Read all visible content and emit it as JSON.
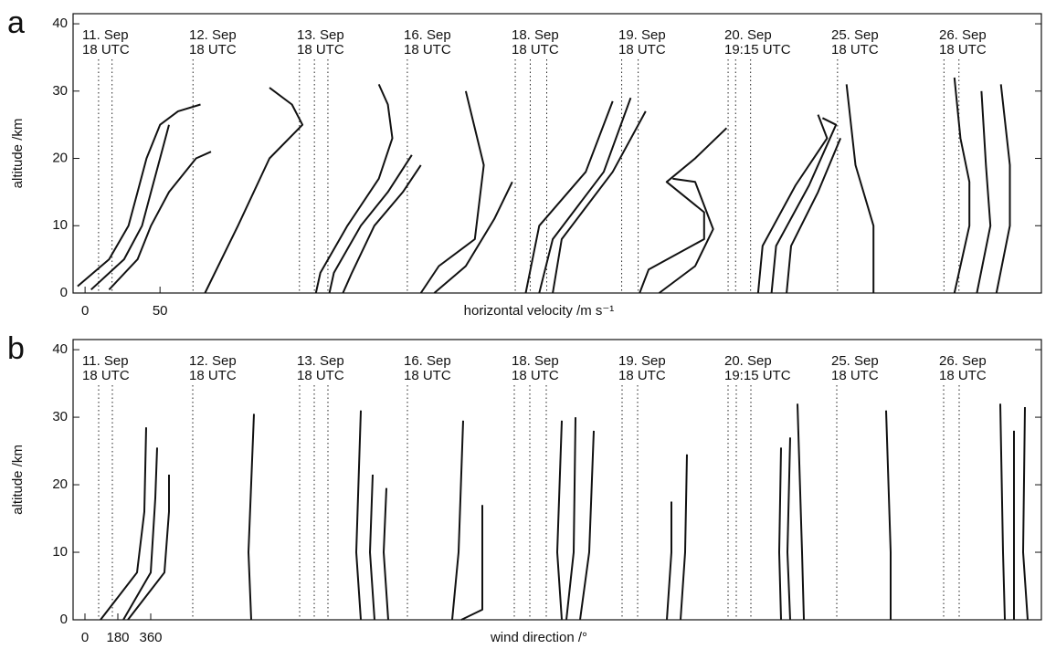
{
  "chart_data": [
    {
      "type": "line",
      "panel_label": "a",
      "ylabel": "altitude /km",
      "xlabel": "horizontal velocity /m s⁻¹",
      "xlim": [
        -8,
        638
      ],
      "ylim": [
        0,
        41.5
      ],
      "xticks": [
        0,
        50
      ],
      "yticks": [
        0,
        10,
        20,
        30,
        40
      ],
      "dates": [
        {
          "day": "11. Sep",
          "time": "18 UTC"
        },
        {
          "day": "12. Sep",
          "time": "18 UTC"
        },
        {
          "day": "13. Sep",
          "time": "18 UTC"
        },
        {
          "day": "16. Sep",
          "time": "18 UTC"
        },
        {
          "day": "18. Sep",
          "time": "18 UTC"
        },
        {
          "day": "19. Sep",
          "time": "18 UTC"
        },
        {
          "day": "20. Sep",
          "time": "19:15 UTC"
        },
        {
          "day": "25. Sep",
          "time": "18 UTC"
        },
        {
          "day": "26. Sep",
          "time": "18 UTC"
        }
      ],
      "reference_lines": [
        9,
        18,
        72,
        143,
        153,
        162,
        215,
        287,
        297,
        308,
        358,
        369,
        429,
        434,
        444,
        502,
        573,
        583
      ],
      "series": [
        {
          "color": "#111111",
          "x": [
            -5,
            16,
            29,
            35,
            41,
            50,
            62,
            77
          ],
          "values": [
            1,
            5,
            10,
            15,
            20,
            25,
            27,
            28
          ]
        },
        {
          "color": "#111111",
          "x": [
            4,
            26,
            38,
            44,
            50,
            56
          ],
          "values": [
            0.5,
            5,
            10,
            15,
            20,
            25
          ]
        },
        {
          "color": "#111111",
          "x": [
            16,
            35,
            44,
            56,
            74,
            84
          ],
          "values": [
            0.5,
            5,
            10,
            15,
            20,
            21
          ]
        },
        {
          "color": "#111111",
          "x": [
            80,
            102,
            123,
            145,
            138,
            123
          ],
          "values": [
            0,
            10,
            20,
            25,
            28,
            30.5
          ]
        },
        {
          "color": "#111111",
          "x": [
            154,
            157,
            175,
            196,
            205,
            202,
            196
          ],
          "values": [
            0,
            3,
            10,
            17,
            23,
            28,
            31
          ]
        },
        {
          "color": "#111111",
          "x": [
            163,
            166,
            184,
            202,
            218
          ],
          "values": [
            0,
            3,
            10,
            15,
            20.5
          ]
        },
        {
          "color": "#111111",
          "x": [
            172,
            178,
            193,
            212,
            224
          ],
          "values": [
            0,
            3,
            10,
            15,
            19
          ]
        },
        {
          "color": "#111111",
          "x": [
            224,
            236,
            260,
            266,
            254
          ],
          "values": [
            0,
            4,
            8,
            19,
            30
          ]
        },
        {
          "color": "#111111",
          "x": [
            233,
            254,
            273,
            285
          ],
          "values": [
            0,
            4,
            11,
            16.5
          ]
        },
        {
          "color": "#111111",
          "x": [
            294,
            303,
            334,
            352
          ],
          "values": [
            0,
            10,
            18,
            28.5
          ]
        },
        {
          "color": "#111111",
          "x": [
            303,
            312,
            346,
            364
          ],
          "values": [
            0,
            8,
            18,
            29
          ]
        },
        {
          "color": "#111111",
          "x": [
            312,
            318,
            352,
            374
          ],
          "values": [
            0,
            8,
            18,
            27
          ]
        },
        {
          "color": "#111111",
          "x": [
            370,
            376,
            413,
            413,
            388,
            407,
            428
          ],
          "values": [
            0,
            3.5,
            8,
            12,
            16.5,
            20,
            24.5
          ]
        },
        {
          "color": "#111111",
          "x": [
            383,
            407,
            419,
            407,
            392
          ],
          "values": [
            0,
            4,
            9.5,
            16.5,
            17
          ]
        },
        {
          "color": "#111111",
          "x": [
            449,
            452,
            474,
            495,
            489
          ],
          "values": [
            0,
            7,
            16,
            23,
            26.5
          ]
        },
        {
          "color": "#111111",
          "x": [
            458,
            461,
            483,
            501,
            492
          ],
          "values": [
            0,
            7,
            16,
            25,
            26
          ]
        },
        {
          "color": "#111111",
          "x": [
            468,
            471,
            489,
            504
          ],
          "values": [
            0,
            7,
            15,
            23
          ]
        },
        {
          "color": "#111111",
          "x": [
            526,
            526,
            514,
            508
          ],
          "values": [
            0,
            10,
            19,
            31
          ]
        },
        {
          "color": "#111111",
          "x": [
            580,
            590,
            590,
            584,
            580
          ],
          "values": [
            0,
            10,
            16.5,
            23,
            32
          ]
        },
        {
          "color": "#111111",
          "x": [
            595,
            604,
            601,
            598
          ],
          "values": [
            0,
            10,
            19,
            30
          ]
        },
        {
          "color": "#111111",
          "x": [
            608,
            617,
            617,
            611
          ],
          "values": [
            0,
            10,
            19,
            31
          ]
        }
      ]
    },
    {
      "type": "line",
      "panel_label": "b",
      "ylabel": "altitude /km",
      "xlabel": "wind direction /°",
      "xlim": [
        -65,
        5235
      ],
      "ylim": [
        0,
        41.5
      ],
      "xticks": [
        0,
        180,
        360
      ],
      "yticks": [
        0,
        10,
        20,
        30,
        40
      ],
      "dates": [
        {
          "day": "11. Sep",
          "time": "18 UTC"
        },
        {
          "day": "12. Sep",
          "time": "18 UTC"
        },
        {
          "day": "13. Sep",
          "time": "18 UTC"
        },
        {
          "day": "16. Sep",
          "time": "18 UTC"
        },
        {
          "day": "18. Sep",
          "time": "18 UTC"
        },
        {
          "day": "19. Sep",
          "time": "18 UTC"
        },
        {
          "day": "20. Sep",
          "time": "19:15 UTC"
        },
        {
          "day": "25. Sep",
          "time": "18 UTC"
        },
        {
          "day": "26. Sep",
          "time": "18 UTC"
        }
      ],
      "reference_lines": [
        75,
        150,
        590,
        1175,
        1255,
        1330,
        1765,
        2350,
        2435,
        2525,
        2940,
        3025,
        3520,
        3565,
        3645,
        4115,
        4700,
        4785
      ],
      "series": [
        {
          "color": "#111111",
          "x": [
            85,
            285,
            325,
            335
          ],
          "values": [
            0,
            7,
            16,
            28.5
          ]
        },
        {
          "color": "#111111",
          "x": [
            210,
            360,
            385,
            395
          ],
          "values": [
            0,
            7,
            18,
            25.5
          ]
        },
        {
          "color": "#111111",
          "x": [
            235,
            435,
            460,
            460
          ],
          "values": [
            0,
            7,
            16,
            21.5
          ]
        },
        {
          "color": "#111111",
          "x": [
            910,
            895,
            925
          ],
          "values": [
            0,
            10,
            30.5
          ]
        },
        {
          "color": "#111111",
          "x": [
            1510,
            1485,
            1510
          ],
          "values": [
            0,
            10,
            31
          ]
        },
        {
          "color": "#111111",
          "x": [
            1585,
            1560,
            1575
          ],
          "values": [
            0,
            10,
            21.5
          ]
        },
        {
          "color": "#111111",
          "x": [
            1660,
            1635,
            1650
          ],
          "values": [
            0,
            10,
            19.5
          ]
        },
        {
          "color": "#111111",
          "x": [
            2010,
            2045,
            2070
          ],
          "values": [
            0,
            10,
            29.5
          ]
        },
        {
          "color": "#111111",
          "x": [
            2060,
            2175,
            2175
          ],
          "values": [
            0,
            1.5,
            17
          ]
        },
        {
          "color": "#111111",
          "x": [
            2610,
            2585,
            2610
          ],
          "values": [
            0,
            10,
            29.5
          ]
        },
        {
          "color": "#111111",
          "x": [
            2635,
            2675,
            2685
          ],
          "values": [
            0,
            10,
            30
          ]
        },
        {
          "color": "#111111",
          "x": [
            2710,
            2760,
            2785
          ],
          "values": [
            0,
            10,
            28
          ]
        },
        {
          "color": "#111111",
          "x": [
            3185,
            3210,
            3210
          ],
          "values": [
            0,
            10,
            17.5
          ]
        },
        {
          "color": "#111111",
          "x": [
            3260,
            3285,
            3295
          ],
          "values": [
            0,
            10,
            24.5
          ]
        },
        {
          "color": "#111111",
          "x": [
            3810,
            3800,
            3810
          ],
          "values": [
            0,
            10,
            25.5
          ]
        },
        {
          "color": "#111111",
          "x": [
            3860,
            3845,
            3860
          ],
          "values": [
            0,
            10,
            27
          ]
        },
        {
          "color": "#111111",
          "x": [
            3935,
            3925,
            3900
          ],
          "values": [
            0,
            10,
            32
          ]
        },
        {
          "color": "#111111",
          "x": [
            4410,
            4410,
            4385
          ],
          "values": [
            0,
            10,
            31
          ]
        },
        {
          "color": "#111111",
          "x": [
            5035,
            5025,
            5010
          ],
          "values": [
            0,
            10,
            32
          ]
        },
        {
          "color": "#111111",
          "x": [
            5085,
            5085,
            5085
          ],
          "values": [
            0,
            10,
            28
          ]
        },
        {
          "color": "#111111",
          "x": [
            5160,
            5135,
            5145
          ],
          "values": [
            0,
            10,
            31.5
          ]
        }
      ]
    }
  ]
}
